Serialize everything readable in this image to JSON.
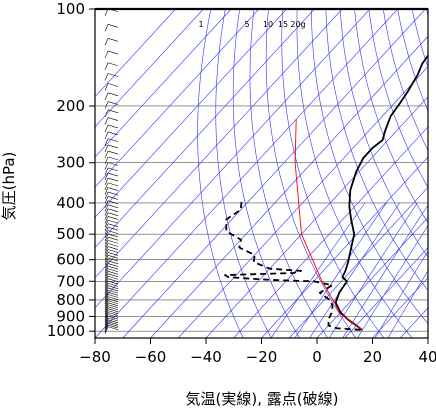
{
  "chart_data": {
    "type": "line",
    "title": "",
    "subtitle": "",
    "xlabel": "気温(実線), 露点(破線)",
    "ylabel": "気圧(hPa)",
    "xlim": [
      -80,
      40
    ],
    "ylim": [
      1050,
      100
    ],
    "y_scale": "log",
    "x_ticks": [
      "−80",
      "−60",
      "−40",
      "−20",
      "0",
      "20",
      "40"
    ],
    "x_tick_values": [
      -80,
      -60,
      -40,
      -20,
      0,
      20,
      40
    ],
    "y_ticks": [
      "100",
      "200",
      "300",
      "400",
      "500",
      "600",
      "700",
      "800",
      "900",
      "1000"
    ],
    "y_tick_values": [
      100,
      200,
      300,
      400,
      500,
      600,
      700,
      800,
      900,
      1000
    ],
    "mixing_ratio_labels": [
      "1",
      "5",
      "10",
      "15",
      "20g"
    ],
    "grid": true,
    "series": [
      {
        "name": "",
        "style": "solid",
        "color": "#000000",
        "points": [
          {
            "t": 13.5,
            "p": 990
          },
          {
            "t": 10,
            "p": 960
          },
          {
            "t": 5,
            "p": 920
          },
          {
            "t": 0,
            "p": 875
          },
          {
            "t": -5,
            "p": 815
          },
          {
            "t": -7,
            "p": 760
          },
          {
            "t": -8,
            "p": 700
          },
          {
            "t": -11,
            "p": 680
          },
          {
            "t": -12,
            "p": 650
          },
          {
            "t": -14,
            "p": 610
          },
          {
            "t": -17,
            "p": 560
          },
          {
            "t": -21,
            "p": 500
          },
          {
            "t": -27,
            "p": 450
          },
          {
            "t": -32,
            "p": 410
          },
          {
            "t": -37,
            "p": 365
          },
          {
            "t": -41,
            "p": 320
          },
          {
            "t": -43,
            "p": 290
          },
          {
            "t": -43,
            "p": 270
          },
          {
            "t": -42,
            "p": 255
          },
          {
            "t": -44,
            "p": 240
          },
          {
            "t": -47,
            "p": 215
          },
          {
            "t": -48,
            "p": 195
          },
          {
            "t": -49,
            "p": 180
          },
          {
            "t": -50,
            "p": 170
          },
          {
            "t": -51,
            "p": 160
          },
          {
            "t": -53,
            "p": 148
          },
          {
            "t": -54,
            "p": 135
          },
          {
            "t": -56,
            "p": 122
          },
          {
            "t": -55,
            "p": 112
          },
          {
            "t": -56,
            "p": 106
          },
          {
            "t": -61,
            "p": 102
          }
        ]
      },
      {
        "name": "",
        "style": "dashed",
        "color": "#000000",
        "points": [
          {
            "t": 13,
            "p": 990
          },
          {
            "t": 4,
            "p": 980
          },
          {
            "t": 0,
            "p": 960
          },
          {
            "t": -2,
            "p": 920
          },
          {
            "t": -3,
            "p": 880
          },
          {
            "t": -5,
            "p": 835
          },
          {
            "t": -8,
            "p": 800
          },
          {
            "t": -14,
            "p": 760
          },
          {
            "t": -12,
            "p": 720
          },
          {
            "t": -20,
            "p": 700
          },
          {
            "t": -32,
            "p": 695
          },
          {
            "t": -40,
            "p": 690
          },
          {
            "t": -52,
            "p": 680
          },
          {
            "t": -54,
            "p": 670
          },
          {
            "t": -30,
            "p": 660
          },
          {
            "t": -28,
            "p": 650
          },
          {
            "t": -40,
            "p": 640
          },
          {
            "t": -48,
            "p": 610
          },
          {
            "t": -50,
            "p": 580
          },
          {
            "t": -58,
            "p": 550
          },
          {
            "t": -60,
            "p": 520
          },
          {
            "t": -68,
            "p": 490
          },
          {
            "t": -70,
            "p": 470
          },
          {
            "t": -72,
            "p": 450
          },
          {
            "t": -70,
            "p": 420
          },
          {
            "t": -72,
            "p": 400
          },
          {
            "t": -73,
            "p": 390
          }
        ]
      },
      {
        "name": "",
        "style": "solid",
        "color": "#ff0000",
        "points": [
          {
            "t": 13.5,
            "p": 990
          },
          {
            "t": 0,
            "p": 880
          },
          {
            "t": -5,
            "p": 820
          },
          {
            "t": -17,
            "p": 700
          },
          {
            "t": -40,
            "p": 500
          },
          {
            "t": -66,
            "p": 300
          },
          {
            "t": -80,
            "p": 220
          }
        ]
      }
    ],
    "colors": {
      "grid_blue": "#3232ff",
      "frame": "#000000",
      "isobar": "#555555"
    }
  }
}
